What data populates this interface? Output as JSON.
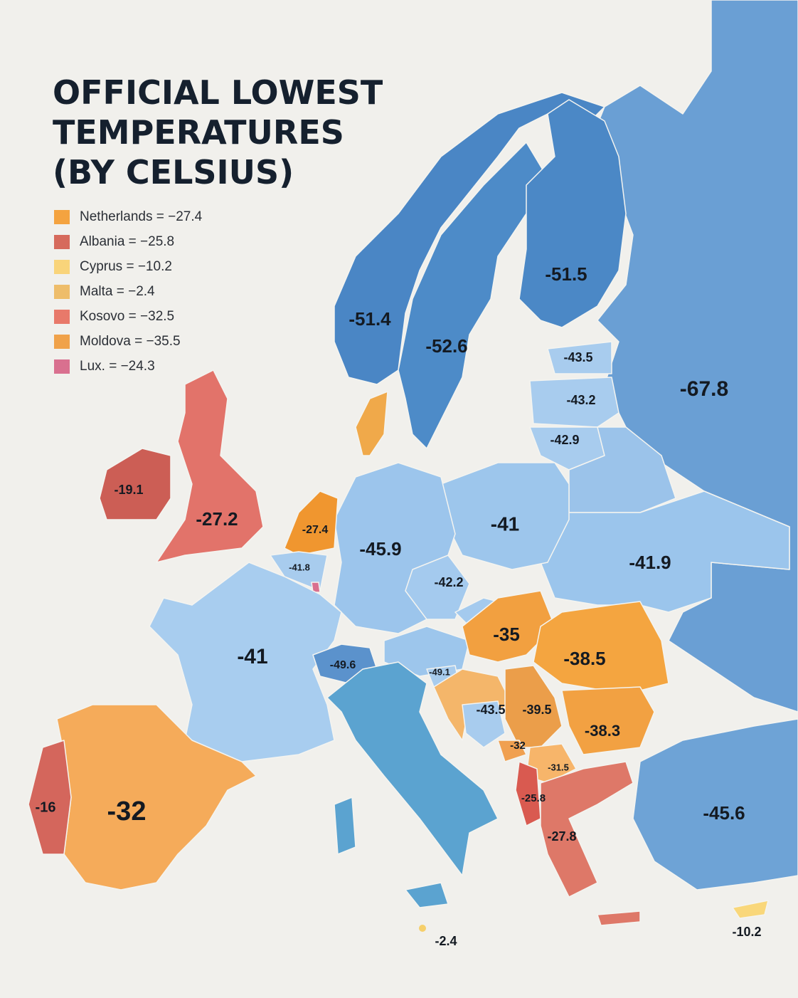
{
  "title": [
    "OFFICIAL LOWEST",
    "TEMPERATURES",
    "(BY CELSIUS)"
  ],
  "legend": [
    {
      "label": "Netherlands = −27.4",
      "color": "#f4a340"
    },
    {
      "label": "Albania = −25.8",
      "color": "#d66a5c"
    },
    {
      "label": "Cyprus = −10.2",
      "color": "#f9d47a"
    },
    {
      "label": "Malta = −2.4",
      "color": "#eebd6a"
    },
    {
      "label": "Kosovo = −32.5",
      "color": "#e8796a"
    },
    {
      "label": "Moldova = −35.5",
      "color": "#f0a24a"
    },
    {
      "label": "Lux. = −24.3",
      "color": "#d9708f"
    }
  ],
  "labels": [
    "-51.4",
    "-52.6",
    "-51.5",
    "-67.8",
    "-43.5",
    "-43.2",
    "-42.9",
    "-19.1",
    "-27.2",
    "-27.4",
    "-45.9",
    "-41",
    "-41.9",
    "-41.8",
    "-42.2",
    "-35",
    "-38.5",
    "-41",
    "-49.6",
    "-49.1",
    "-43.5",
    "-39.5",
    "-38.3",
    "-32",
    "-31.5",
    "-25.8",
    "-27.8",
    "-16",
    "-32",
    "-45.6",
    "-2.4",
    "-10.2"
  ]
}
